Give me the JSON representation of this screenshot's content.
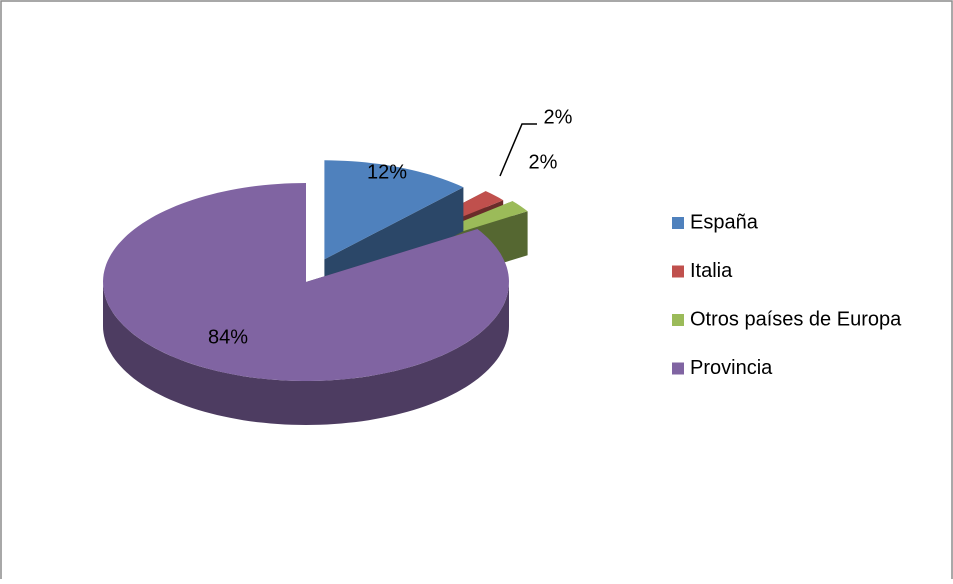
{
  "chart_data": {
    "type": "pie",
    "categories": [
      "España",
      "Italia",
      "Otros países de Europa",
      "Provincia"
    ],
    "values": [
      12,
      2,
      2,
      84
    ],
    "value_labels": [
      "12%",
      "2%",
      "2%",
      "84%"
    ],
    "colors": [
      "#4f81bd",
      "#c0504d",
      "#9bbb59",
      "#8064a2"
    ],
    "legend": "right"
  }
}
